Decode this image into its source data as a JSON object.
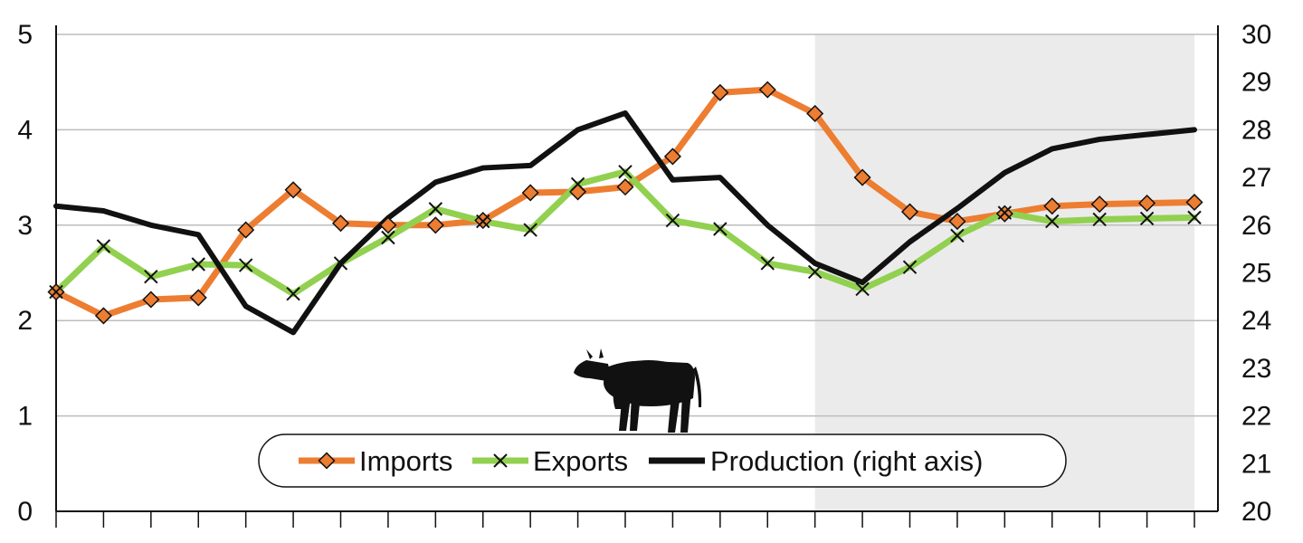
{
  "chart_data": {
    "type": "line",
    "x": [
      1,
      2,
      3,
      4,
      5,
      6,
      7,
      8,
      9,
      10,
      11,
      12,
      13,
      14,
      15,
      16,
      17,
      18,
      19,
      20,
      21,
      22,
      23,
      24,
      25
    ],
    "forecast_start_x": 17,
    "series": [
      {
        "name": "Imports",
        "axis": "left",
        "color": "#ed7d31",
        "marker": "diamond",
        "values": [
          2.3,
          2.05,
          2.22,
          2.24,
          2.95,
          3.37,
          3.02,
          3.0,
          3.0,
          3.05,
          3.34,
          3.35,
          3.4,
          3.72,
          4.39,
          4.42,
          4.17,
          3.5,
          3.14,
          3.04,
          3.12,
          3.2,
          3.22,
          3.23,
          3.24
        ]
      },
      {
        "name": "Exports",
        "axis": "left",
        "color": "#92d050",
        "marker": "x",
        "values": [
          2.3,
          2.78,
          2.46,
          2.59,
          2.58,
          2.28,
          2.6,
          2.87,
          3.17,
          3.04,
          2.95,
          3.43,
          3.56,
          3.05,
          2.96,
          2.6,
          2.51,
          2.33,
          2.56,
          2.89,
          3.13,
          3.04,
          3.06,
          3.07,
          3.08
        ]
      },
      {
        "name": "Production (right axis)",
        "axis": "right",
        "color": "#111111",
        "marker": "none",
        "values": [
          26.4,
          26.3,
          26.0,
          25.8,
          24.3,
          23.75,
          25.2,
          26.15,
          26.9,
          27.2,
          27.25,
          28.0,
          28.35,
          26.95,
          27.0,
          26.0,
          25.2,
          24.8,
          25.65,
          26.35,
          27.1,
          27.6,
          27.8,
          27.9,
          28.0
        ]
      }
    ],
    "y_left": {
      "min": 0,
      "max": 5,
      "ticks": [
        "0",
        "1",
        "2",
        "3",
        "4",
        "5"
      ]
    },
    "y_right": {
      "min": 20,
      "max": 30,
      "ticks": [
        "20",
        "21",
        "22",
        "23",
        "24",
        "25",
        "26",
        "27",
        "28",
        "29",
        "30"
      ]
    },
    "grid": true,
    "legend_placement": "bottom-center",
    "title": "",
    "xlabel": "",
    "ylabel": ""
  }
}
